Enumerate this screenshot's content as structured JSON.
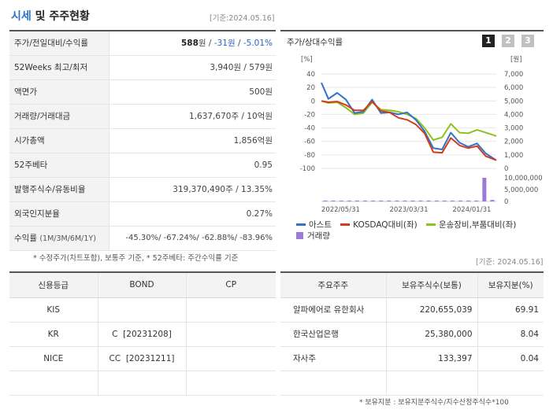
{
  "header": {
    "title_part1": "시세",
    "title_part2": " 및 주주현황",
    "base_date": "[기준:2024.05.16]"
  },
  "quote": {
    "rows": [
      {
        "label": "주가/전일대비/수익률"
      },
      {
        "label": "52Weeks 최고/최저",
        "value": "3,940원 / 579원"
      },
      {
        "label": "액면가",
        "value": "500원"
      },
      {
        "label": "거래량/거래대금",
        "value": "1,637,670주 / 10억원"
      },
      {
        "label": "시가총액",
        "value": "1,856억원"
      },
      {
        "label": "52주베타",
        "value": "0.95"
      },
      {
        "label": "발행주식수/유동비율",
        "value": "319,370,490주 / 13.35%"
      },
      {
        "label": "외국인지분율",
        "value": "0.27%"
      }
    ],
    "price": "588",
    "price_unit": "원",
    "sep1": " / ",
    "change": "-31원",
    "sep2": " / ",
    "change_rate": "-5.01%",
    "return_label": "수익률",
    "return_periods": "(1M/3M/6M/1Y)",
    "return_values": "-45.30%/ -67.24%/ -62.88%/ -83.96%",
    "footnote": "* 수정주가(차트포함), 보통주 기준, * 52주베타: 주간수익률 기준"
  },
  "chart_panel": {
    "title": "주가/상대수익률",
    "buttons": [
      "1",
      "2",
      "3"
    ],
    "left_unit": "[%]",
    "right_unit": "[원]",
    "legend": [
      "아스트",
      "KOSDAQ대비(좌)",
      "운송장비,부품대비(좌)",
      "거래량"
    ],
    "colors": {
      "stock": "#2e74c7",
      "kosdaq": "#d43a1f",
      "sector": "#8cc21c",
      "volume": "#9c79d6"
    }
  },
  "chart_data": {
    "type": "line",
    "x_ticks": [
      "2022/05/31",
      "2023/03/31",
      "2024/01/31"
    ],
    "left_ticks": [
      "40",
      "20",
      "0",
      "-20",
      "-40",
      "-60",
      "-80",
      "-100"
    ],
    "right_ticks": [
      "7,000",
      "6,000",
      "5,000",
      "4,000",
      "3,000",
      "2,000",
      "1,000",
      "0"
    ],
    "volume_ticks": [
      "10,000,000",
      "5,000,000",
      "0"
    ],
    "ylim_left": [
      -100,
      40
    ],
    "ylim_right": [
      0,
      7000
    ],
    "x_index_range": [
      0,
      100
    ],
    "x_index": [
      0,
      4,
      9,
      14,
      19,
      24,
      29,
      34,
      39,
      44,
      49,
      54,
      59,
      64,
      69,
      74,
      79,
      84,
      89,
      94,
      100
    ],
    "series": [
      {
        "name": "아스트",
        "values": [
          27,
          3,
          12,
          2,
          -18,
          -16,
          2,
          -18,
          -17,
          -20,
          -17,
          -28,
          -45,
          -70,
          -72,
          -47,
          -62,
          -68,
          -63,
          -78,
          -88
        ]
      },
      {
        "name": "KOSDAQ대비(좌)",
        "values": [
          0,
          -2,
          -1,
          -6,
          -14,
          -14,
          -1,
          -15,
          -17,
          -25,
          -28,
          -35,
          -48,
          -76,
          -77,
          -55,
          -66,
          -70,
          -67,
          -82,
          -88
        ]
      },
      {
        "name": "운송장비,부품대비(좌)",
        "values": [
          0,
          -3,
          -2,
          -10,
          -20,
          -18,
          -2,
          -13,
          -14,
          -16,
          -20,
          -26,
          -40,
          -58,
          -54,
          -34,
          -47,
          -48,
          -43,
          -47,
          -52
        ]
      }
    ],
    "volume_k": [
      50,
      40,
      30,
      60,
      40,
      30,
      80,
      30,
      40,
      30,
      30,
      40,
      60,
      70,
      50,
      40,
      60,
      70,
      50,
      120,
      13000,
      600
    ]
  },
  "credit": {
    "headers": [
      "신용등급",
      "BOND",
      "CP"
    ],
    "rows": [
      [
        "KIS",
        "",
        ""
      ],
      [
        "KR",
        "C  [20231208]",
        ""
      ],
      [
        "NICE",
        "CC  [20231211]",
        ""
      ],
      [
        "",
        "",
        ""
      ]
    ]
  },
  "holders": {
    "base_date": "[기준: 2024.05.16]",
    "headers": [
      "주요주주",
      "보유주식수(보통)",
      "보유지분(%)"
    ],
    "rows": [
      [
        "알파에어로 유한회사",
        "220,655,039",
        "69.91"
      ],
      [
        "한국산업은행",
        "25,380,000",
        "8.04"
      ],
      [
        "자사주",
        "133,397",
        "0.04"
      ],
      [
        "",
        "",
        ""
      ]
    ],
    "footnote": "* 보유지분 : 보유지분주식수/지수산정주식수*100"
  }
}
